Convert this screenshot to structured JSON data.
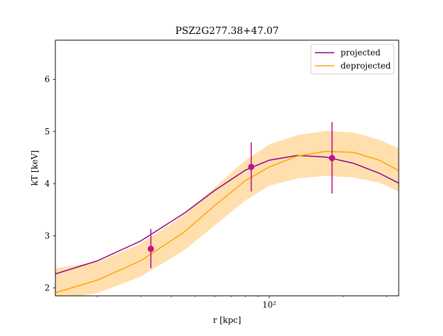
{
  "chart_data": {
    "type": "line",
    "title": "PSZ2G277.38+47.07",
    "xlabel": "r [kpc]",
    "ylabel": "kT [keV]",
    "xscale": "log",
    "xlim": [
      13.5,
      336
    ],
    "ylim": [
      1.85,
      6.75
    ],
    "x_ticks": [
      {
        "value": 100,
        "label": "10²"
      }
    ],
    "y_ticks": [
      2,
      3,
      4,
      5,
      6
    ],
    "grid": false,
    "legend": "top-right",
    "colors": {
      "projected": "#8b008b",
      "deprojected": "#ffa500",
      "band": "#ffdfad",
      "points": "#c0108c"
    },
    "series": [
      {
        "name": "projected",
        "x": [
          13.5,
          20,
          30,
          45,
          60,
          80,
          100,
          130,
          170,
          220,
          280,
          336
        ],
        "y": [
          2.27,
          2.52,
          2.9,
          3.43,
          3.87,
          4.26,
          4.45,
          4.54,
          4.51,
          4.39,
          4.2,
          4.01
        ]
      },
      {
        "name": "deprojected",
        "x": [
          13.5,
          20,
          30,
          45,
          60,
          80,
          100,
          130,
          170,
          220,
          280,
          336
        ],
        "y": [
          1.91,
          2.15,
          2.52,
          3.07,
          3.58,
          4.06,
          4.32,
          4.53,
          4.62,
          4.6,
          4.45,
          4.25
        ],
        "band_lower": [
          1.78,
          1.9,
          2.22,
          2.72,
          3.2,
          3.68,
          3.96,
          4.1,
          4.15,
          4.12,
          4.02,
          3.85
        ],
        "band_upper": [
          2.38,
          2.5,
          2.85,
          3.4,
          3.93,
          4.45,
          4.75,
          4.93,
          5.01,
          4.98,
          4.84,
          4.68
        ]
      }
    ],
    "points": [
      {
        "x": 33.0,
        "y": 2.75,
        "ylow": 2.38,
        "yhigh": 3.13
      },
      {
        "x": 84.5,
        "y": 4.32,
        "ylow": 3.85,
        "yhigh": 4.79
      },
      {
        "x": 180.0,
        "y": 4.49,
        "ylow": 3.81,
        "yhigh": 5.18
      }
    ]
  }
}
